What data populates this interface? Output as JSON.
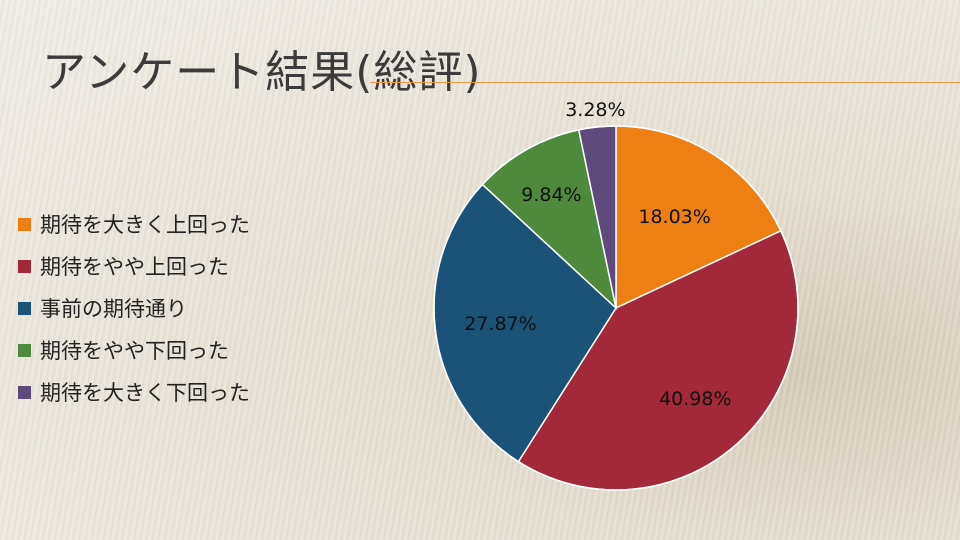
{
  "slide": {
    "title": "アンケート結果(総評)"
  },
  "chart_data": {
    "type": "pie",
    "categories": [
      "期待を大きく上回った",
      "期待をやや上回った",
      "事前の期待通り",
      "期待をやや下回った",
      "期待を大きく下回った"
    ],
    "values": [
      18.03,
      40.98,
      27.87,
      9.84,
      3.28
    ],
    "value_labels": [
      "18.03%",
      "40.98%",
      "27.87%",
      "9.84%",
      "3.28%"
    ],
    "colors": [
      "#ee7f12",
      "#a3283a",
      "#1b5278",
      "#4e8a3c",
      "#5e4a7c"
    ],
    "legend_position": "left",
    "start_angle": "12 o'clock, clockwise"
  }
}
